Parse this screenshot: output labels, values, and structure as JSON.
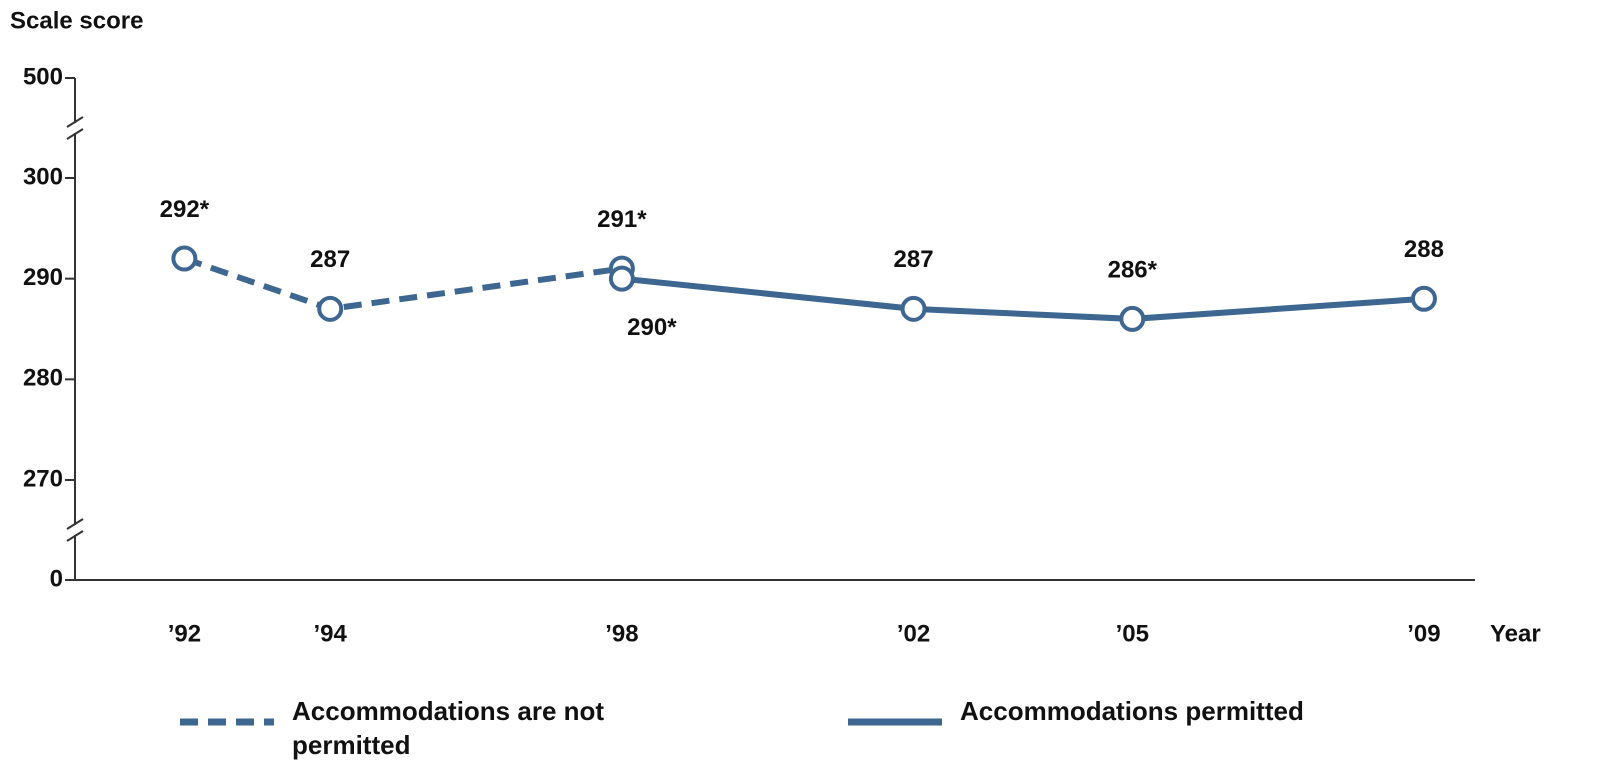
{
  "chart_data": {
    "type": "line",
    "y_label": "Scale score",
    "x_label": "Year",
    "ylim": [
      0,
      500
    ],
    "ybreaks": [
      [
        0,
        270
      ],
      [
        300,
        500
      ]
    ],
    "yticks": [
      0,
      270,
      280,
      290,
      300,
      500
    ],
    "xlim": [
      1990.5,
      2009.7
    ],
    "xticks": [
      {
        "value": 1992,
        "label": "’92"
      },
      {
        "value": 1994,
        "label": "’94"
      },
      {
        "value": 1998,
        "label": "’98"
      },
      {
        "value": 2002,
        "label": "’02"
      },
      {
        "value": 2005,
        "label": "’05"
      },
      {
        "value": 2009,
        "label": "’09"
      }
    ],
    "series": [
      {
        "name": "Accommodations are not permitted",
        "color": "#3d6691",
        "dashed": true,
        "x": [
          1992,
          1994,
          1998
        ],
        "values": [
          292,
          287,
          291
        ],
        "value_labels": [
          "292*",
          "287",
          "291*"
        ]
      },
      {
        "name": "Accommodations permitted",
        "color": "#3d6691",
        "dashed": false,
        "x": [
          1998,
          2002,
          2005,
          2009
        ],
        "values": [
          290,
          287,
          286,
          288
        ],
        "value_labels": [
          "290*",
          "287",
          "286*",
          "288"
        ]
      }
    ]
  }
}
